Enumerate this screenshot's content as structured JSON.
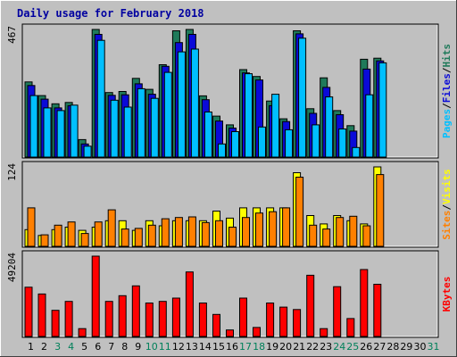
{
  "chart_data": {
    "type": "bar",
    "title": "Daily usage for February 2018",
    "x": [
      "1",
      "2",
      "3",
      "4",
      "5",
      "6",
      "7",
      "8",
      "9",
      "10",
      "11",
      "12",
      "13",
      "14",
      "15",
      "16",
      "17",
      "18",
      "19",
      "20",
      "21",
      "22",
      "23",
      "24",
      "25",
      "26",
      "27",
      "28",
      "29",
      "30",
      "31"
    ],
    "weekend_days": [
      "3",
      "4",
      "10",
      "11",
      "17",
      "18",
      "24",
      "25",
      "31"
    ],
    "panels": [
      {
        "id": "hits_files_pages",
        "ymax_label": "467",
        "ymax": 467,
        "side_label_parts": [
          "Pages",
          "/",
          "Files",
          "/",
          "Hits"
        ],
        "series": [
          {
            "name": "Hits",
            "color": "#1f7a5a",
            "values": [
              275,
              225,
              195,
              200,
              64,
              470,
              236,
              240,
              288,
              248,
              338,
              462,
              470,
              224,
              150,
              118,
              320,
              295,
              205,
              140,
              462,
              177,
              290,
              170,
              115,
              358,
              362
            ]
          },
          {
            "name": "Files",
            "color": "#0a0ad8",
            "values": [
              262,
              212,
              180,
              188,
              48,
              449,
              226,
              228,
              268,
              230,
              332,
              419,
              449,
              210,
              132,
              106,
              308,
              282,
              188,
              130,
              451,
              160,
              255,
              155,
              95,
              322,
              352
            ]
          },
          {
            "name": "Pages",
            "color": "#00bfff",
            "values": [
              225,
              180,
              170,
              190,
              40,
              427,
              208,
              183,
              250,
              215,
              310,
              385,
              395,
              165,
              48,
              93,
              305,
              110,
              230,
              100,
              435,
              118,
              220,
              103,
              35,
              228,
              345
            ]
          }
        ]
      },
      {
        "id": "visits_sites",
        "ymax_label": "124",
        "ymax": 124,
        "side_label_parts": [
          "Sites",
          "/",
          "Visits"
        ],
        "series": [
          {
            "name": "Visits",
            "color": "#ffff00",
            "values": [
              26,
              17,
              26,
              30,
              25,
              30,
              40,
              40,
              25,
              40,
              32,
              40,
              40,
              40,
              55,
              44,
              60,
              60,
              60,
              60,
              115,
              48,
              35,
              48,
              40,
              35,
              125
            ]
          },
          {
            "name": "Sites",
            "color": "#ff8000",
            "values": [
              60,
              18,
              33,
              38,
              20,
              38,
              57,
              27,
              28,
              33,
              43,
              45,
              46,
              37,
              40,
              30,
              45,
              52,
              54,
              60,
              108,
              33,
              27,
              45,
              47,
              32,
              112
            ]
          }
        ]
      },
      {
        "id": "kbytes",
        "ymax_label": "49204",
        "ymax": 49204,
        "side_label_parts": [
          "KBytes"
        ],
        "series": [
          {
            "name": "KBytes",
            "color": "#ff0000",
            "values": [
              30200,
              26000,
              16000,
              21500,
              4800,
              51000,
              21500,
              25000,
              31000,
              20500,
              21500,
              23500,
              39500,
              20500,
              13500,
              4000,
              23500,
              5500,
              20500,
              18000,
              16500,
              37500,
              4800,
              30500,
              11000,
              41000,
              32000
            ]
          }
        ]
      }
    ]
  }
}
